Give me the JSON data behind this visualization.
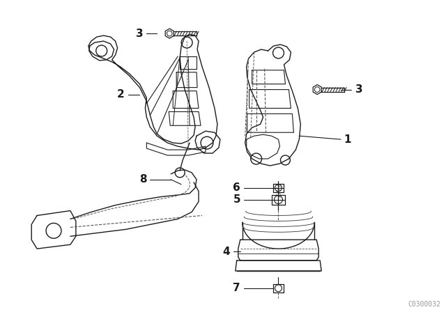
{
  "bg_color": "#ffffff",
  "line_color": "#1a1a1a",
  "fig_width": 6.4,
  "fig_height": 4.48,
  "dpi": 100,
  "watermark": "C0300032",
  "watermark_fontsize": 7
}
